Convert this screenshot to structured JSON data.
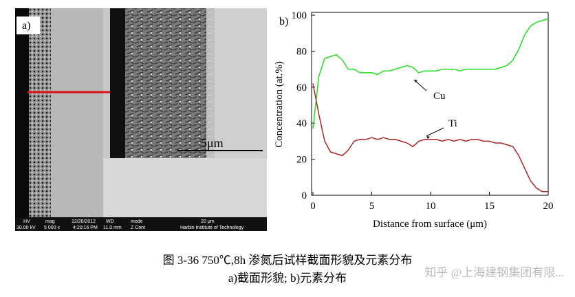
{
  "figure_a": {
    "label": "a)",
    "scale_bar": "5μm",
    "info_bar": {
      "hv": "HV",
      "hv_value": "30.00 kV",
      "mag": "mag",
      "mag_value": "5 000 x",
      "date": "12/20/2012",
      "time": "4:20:16 PM",
      "wd": "WD",
      "wd_value": "11.0 mm",
      "mode": "mode",
      "mode_value": "Z Cont",
      "scale": "20 μm",
      "institution": "Harbin Institute of Technology"
    }
  },
  "chart_data": {
    "type": "line",
    "label": "b)",
    "x_label": "Distance from surface (μm)",
    "y_label": "Concentration (at.%)",
    "x": [
      0,
      0.5,
      1,
      1.5,
      2,
      2.5,
      3,
      3.5,
      4,
      4.5,
      5,
      5.5,
      6,
      6.5,
      7,
      7.5,
      8,
      8.5,
      9,
      9.5,
      10,
      10.5,
      11,
      11.5,
      12,
      12.5,
      13,
      13.5,
      14,
      14.5,
      15,
      15.5,
      16,
      16.5,
      17,
      17.5,
      18,
      18.5,
      19,
      19.5,
      20
    ],
    "series": [
      {
        "name": "Cu",
        "color": "#22dd22",
        "values": [
          37,
          66,
          76,
          77,
          78,
          75,
          70,
          70,
          68,
          68,
          68,
          67,
          69,
          69,
          70,
          71,
          72,
          71,
          68,
          69,
          69,
          69,
          70,
          70,
          70,
          69,
          70,
          70,
          70,
          70,
          70,
          70,
          71,
          72,
          75,
          81,
          89,
          94,
          96,
          97,
          98
        ]
      },
      {
        "name": "Ti",
        "color": "#b22222",
        "values": [
          62,
          45,
          30,
          24,
          23,
          22,
          25,
          30,
          31,
          31,
          32,
          31,
          32,
          31,
          31,
          30,
          29,
          27,
          30,
          31,
          31,
          31,
          30,
          31,
          30,
          31,
          30,
          31,
          31,
          30,
          30,
          29,
          29,
          28,
          27,
          22,
          15,
          8,
          4,
          2,
          2
        ]
      }
    ],
    "xlim": [
      0,
      20
    ],
    "xticks": [
      0,
      5,
      10,
      15,
      20
    ],
    "ylim": [
      0,
      100
    ],
    "yticks": [
      0,
      20,
      40,
      60,
      80,
      100
    ]
  },
  "caption": {
    "title": "图 3-36 750℃,8h 渗氮后试样截面形貌及元素分布",
    "subtitle": "a)截面形貌; b)元素分布"
  },
  "watermark": "知乎 @上海建钢集团有限..."
}
